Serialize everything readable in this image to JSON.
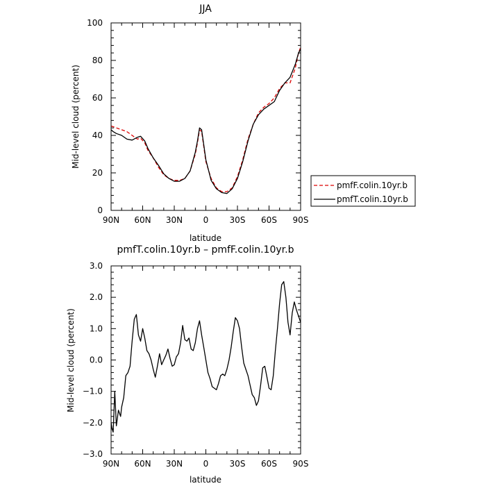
{
  "chart_data": [
    {
      "type": "line",
      "title": "JJA",
      "xlabel": "latitude",
      "ylabel": "Mid-level cloud (percent)",
      "xticks": [
        "90N",
        "60N",
        "30N",
        "0",
        "30S",
        "60S",
        "90S"
      ],
      "yticks": [
        "0",
        "20",
        "40",
        "60",
        "80",
        "100"
      ],
      "xlim": [
        -90,
        90
      ],
      "ylim": [
        0,
        100
      ],
      "legend_position": "right",
      "series": [
        {
          "name": "pmfF.colin.10yr.b",
          "style": "dashed",
          "color": "#dd0000",
          "x": [
            -90,
            -85,
            -80,
            -75,
            -70,
            -65,
            -62,
            -58,
            -55,
            -50,
            -45,
            -40,
            -35,
            -30,
            -25,
            -20,
            -15,
            -10,
            -8,
            -6,
            -4,
            -2,
            0,
            5,
            10,
            15,
            20,
            25,
            30,
            35,
            40,
            45,
            50,
            55,
            60,
            65,
            70,
            75,
            80,
            85,
            88,
            90
          ],
          "y": [
            45,
            44,
            43,
            42,
            40,
            38,
            38.5,
            36,
            32,
            28,
            23,
            19,
            17,
            16,
            16,
            17,
            21,
            30,
            36,
            43,
            42,
            34,
            26,
            17,
            12,
            10,
            10,
            12,
            18,
            27,
            38,
            46,
            52,
            55,
            57,
            60,
            65,
            68,
            68,
            76,
            84,
            87
          ]
        },
        {
          "name": "pmfT.colin.10yr.b",
          "style": "solid",
          "color": "#000000",
          "x": [
            -90,
            -88,
            -85,
            -80,
            -75,
            -70,
            -65,
            -62,
            -58,
            -55,
            -50,
            -45,
            -40,
            -35,
            -30,
            -25,
            -20,
            -15,
            -10,
            -8,
            -6,
            -4,
            -2,
            0,
            5,
            10,
            15,
            20,
            25,
            30,
            35,
            40,
            45,
            50,
            55,
            60,
            65,
            70,
            75,
            80,
            85,
            88,
            90
          ],
          "y": [
            43,
            42,
            41,
            40,
            38,
            37.5,
            39,
            39.5,
            37,
            33,
            28,
            24,
            19.5,
            17,
            15.5,
            15.5,
            17,
            21,
            31,
            37,
            44,
            43,
            35,
            27,
            16,
            11.5,
            9.5,
            9,
            11.5,
            17,
            26,
            37,
            46,
            51,
            54,
            56,
            58,
            64,
            68,
            71,
            78,
            84,
            86
          ]
        }
      ]
    },
    {
      "type": "line",
      "title": "pmfT.colin.10yr.b – pmfF.colin.10yr.b",
      "xlabel": "latitude",
      "ylabel": "Mid-level cloud (percent)",
      "xticks": [
        "90N",
        "60N",
        "30N",
        "0",
        "30S",
        "60S",
        "90S"
      ],
      "yticks": [
        "−3.0",
        "−2.0",
        "−1.0",
        "0.0",
        "1.0",
        "2.0",
        "3.0"
      ],
      "xlim": [
        -90,
        90
      ],
      "ylim": [
        -3,
        3
      ],
      "series": [
        {
          "style": "solid",
          "color": "#000000",
          "x": [
            -90,
            -89,
            -88,
            -86.5,
            -85,
            -83,
            -81,
            -80,
            -78,
            -76,
            -74,
            -72,
            -70,
            -68,
            -66,
            -64,
            -62,
            -60,
            -58,
            -56,
            -54,
            -52,
            -50,
            -48,
            -46,
            -44,
            -42,
            -40,
            -38,
            -36,
            -34,
            -32,
            -30,
            -28,
            -26,
            -24,
            -22,
            -20,
            -18,
            -16,
            -14,
            -12,
            -10,
            -8,
            -6,
            -4,
            -2,
            0,
            2,
            4,
            6,
            8,
            10,
            12,
            14,
            16,
            18,
            20,
            22,
            24,
            26,
            28,
            30,
            32,
            34,
            36,
            38,
            40,
            42,
            44,
            46,
            48,
            50,
            52,
            54,
            56,
            58,
            60,
            62,
            64,
            66,
            68,
            70,
            72,
            74,
            76,
            78,
            80,
            82,
            84,
            86,
            88,
            90
          ],
          "y": [
            -2.0,
            -2.2,
            -2.3,
            -1.0,
            -2.1,
            -1.6,
            -1.8,
            -1.5,
            -1.2,
            -0.5,
            -0.4,
            -0.2,
            0.6,
            1.3,
            1.45,
            0.8,
            0.6,
            1.0,
            0.7,
            0.3,
            0.2,
            0.0,
            -0.3,
            -0.55,
            -0.2,
            0.2,
            -0.15,
            0.0,
            0.15,
            0.35,
            0.05,
            -0.2,
            -0.15,
            0.1,
            0.2,
            0.55,
            1.1,
            0.65,
            0.6,
            0.7,
            0.35,
            0.3,
            0.55,
            1.0,
            1.25,
            0.8,
            0.4,
            0.0,
            -0.4,
            -0.6,
            -0.85,
            -0.9,
            -0.95,
            -0.75,
            -0.5,
            -0.45,
            -0.5,
            -0.3,
            0.0,
            0.4,
            0.9,
            1.35,
            1.25,
            1.0,
            0.4,
            -0.1,
            -0.3,
            -0.5,
            -0.8,
            -1.1,
            -1.2,
            -1.45,
            -1.3,
            -0.8,
            -0.25,
            -0.2,
            -0.55,
            -0.9,
            -0.95,
            -0.5,
            0.3,
            1.0,
            1.8,
            2.4,
            2.5,
            2.0,
            1.2,
            0.8,
            1.5,
            1.85,
            1.6,
            1.4,
            1.2
          ]
        }
      ]
    }
  ]
}
